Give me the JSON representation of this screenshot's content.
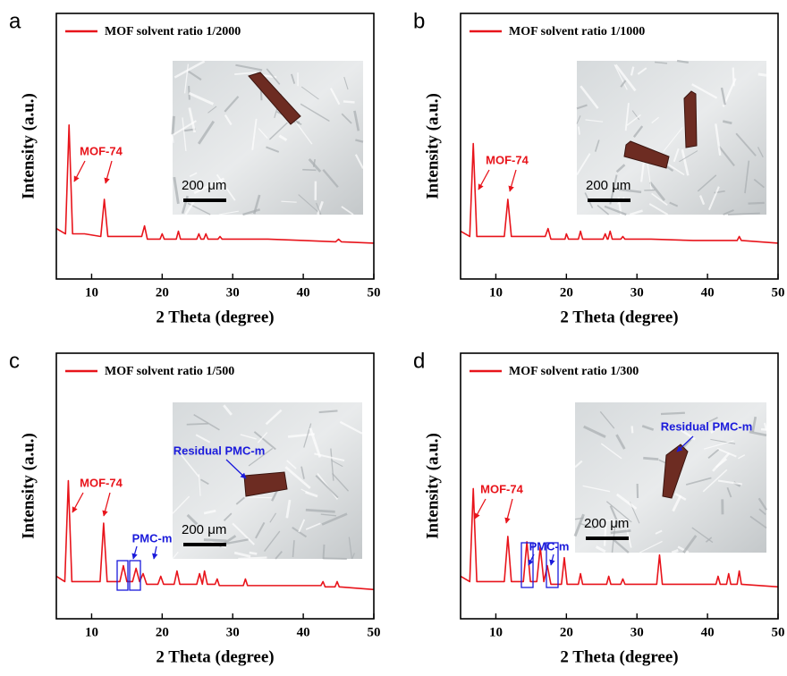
{
  "chart_data": [
    {
      "type": "line",
      "label": "a",
      "xlabel": "2 Theta (degree)",
      "ylabel": "Intensity (a.u.)",
      "xlim": [
        5,
        50
      ],
      "ylim": [
        0,
        100
      ],
      "xticks": [
        10,
        20,
        30,
        40,
        50
      ],
      "series": [
        {
          "name": "MOF solvent ratio 1/2000",
          "color": "#e8141b",
          "x": [
            5,
            6.3,
            6.8,
            7.3,
            9,
            11.3,
            11.8,
            12.3,
            17.1,
            17.5,
            17.9,
            19.7,
            20,
            20.3,
            22,
            22.3,
            22.6,
            24.9,
            25.2,
            25.5,
            25.9,
            26.2,
            26.5,
            27.9,
            28.2,
            28.5,
            31,
            35,
            40,
            44.6,
            45,
            45.4,
            50
          ],
          "values": [
            19,
            17,
            58,
            17,
            17,
            16,
            30,
            16,
            16,
            20,
            15,
            15,
            17,
            15,
            15,
            18,
            15,
            15,
            17,
            15,
            15,
            17,
            15,
            15,
            16,
            15,
            15,
            15,
            14.5,
            14,
            15,
            14,
            13.5
          ]
        }
      ],
      "annotations": [
        {
          "text": "MOF-74",
          "color": "#e8141b"
        }
      ],
      "scale_bar": "200 μm"
    },
    {
      "type": "line",
      "label": "b",
      "xlabel": "2 Theta (degree)",
      "ylabel": "Intensity (a.u.)",
      "xlim": [
        5,
        50
      ],
      "ylim": [
        0,
        100
      ],
      "xticks": [
        10,
        20,
        30,
        40,
        50
      ],
      "series": [
        {
          "name": "MOF solvent ratio 1/1000",
          "color": "#e8141b",
          "x": [
            5,
            6.3,
            6.8,
            7.3,
            9,
            11.2,
            11.7,
            12.2,
            17,
            17.4,
            17.8,
            19.8,
            20,
            20.3,
            21.7,
            22,
            22.3,
            25.2,
            25.5,
            25.8,
            25.9,
            26.2,
            26.5,
            27.7,
            28,
            28.3,
            32,
            38,
            44.2,
            44.5,
            44.8,
            50
          ],
          "values": [
            18,
            16,
            51,
            16,
            16,
            16,
            30,
            16,
            16,
            19,
            15,
            15,
            17,
            15,
            15,
            18,
            15,
            15,
            17,
            15,
            15,
            18,
            15,
            15,
            16,
            15,
            15,
            14.5,
            14.5,
            16,
            14.5,
            13.5
          ]
        }
      ],
      "annotations": [
        {
          "text": "MOF-74",
          "color": "#e8141b"
        }
      ],
      "scale_bar": "200 μm"
    },
    {
      "type": "line",
      "label": "c",
      "xlabel": "2 Theta (degree)",
      "ylabel": "Intensity (a.u.)",
      "xlim": [
        5,
        50
      ],
      "ylim": [
        0,
        100
      ],
      "xticks": [
        10,
        20,
        30,
        40,
        50
      ],
      "series": [
        {
          "name": "MOF solvent ratio 1/500",
          "color": "#e8141b",
          "x": [
            5,
            6.2,
            6.7,
            7.2,
            9,
            11.2,
            11.7,
            12.2,
            14,
            14.5,
            15,
            15.8,
            16.3,
            16.8,
            17.3,
            17.8,
            19.4,
            19.8,
            20.2,
            21.7,
            22.1,
            22.5,
            24.9,
            25.3,
            25.7,
            26,
            26.4,
            27.5,
            27.8,
            28.1,
            31.5,
            31.8,
            32.1,
            36,
            42.5,
            42.8,
            43.1,
            44.5,
            44.8,
            45.1,
            50
          ],
          "values": [
            16,
            14,
            52,
            14,
            14,
            14,
            36,
            14,
            14,
            20,
            14,
            14,
            19,
            14,
            17,
            13,
            13,
            16,
            13,
            13,
            18,
            13,
            13,
            17,
            13,
            18,
            13,
            13,
            15,
            12.5,
            12.5,
            15,
            12.5,
            12.5,
            12.5,
            14,
            12,
            12,
            14,
            12,
            11
          ]
        }
      ],
      "annotations": [
        {
          "text": "MOF-74",
          "color": "#e8141b"
        },
        {
          "text": "PMC-m",
          "color": "#1a1adb"
        },
        {
          "text": "Residual PMC-m",
          "color": "#1a1adb"
        }
      ],
      "scale_bar": "200 μm"
    },
    {
      "type": "line",
      "label": "d",
      "xlabel": "2 Theta (degree)",
      "ylabel": "Intensity (a.u.)",
      "xlim": [
        5,
        50
      ],
      "ylim": [
        0,
        100
      ],
      "xticks": [
        10,
        20,
        30,
        40,
        50
      ],
      "series": [
        {
          "name": "MOF solvent ratio 1/300",
          "color": "#e8141b",
          "x": [
            5,
            6.3,
            6.8,
            7.3,
            9,
            11.2,
            11.7,
            12.2,
            13.9,
            14.4,
            14.9,
            15.8,
            16.3,
            16.8,
            17.3,
            17.8,
            19.3,
            19.7,
            20.1,
            21.7,
            22,
            22.3,
            25.7,
            26,
            26.3,
            27.7,
            28,
            28.3,
            32.8,
            33.2,
            33.6,
            41.2,
            41.5,
            41.8,
            42.7,
            43,
            43.3,
            44.2,
            44.5,
            44.8,
            50
          ],
          "values": [
            16,
            14,
            49,
            14,
            14,
            14,
            31,
            14,
            14,
            29,
            14,
            14,
            27,
            14,
            20,
            13,
            13,
            23,
            13,
            13,
            17,
            13,
            13,
            16,
            13,
            13,
            15,
            13,
            13,
            24,
            13,
            13,
            16,
            13,
            13,
            17,
            13,
            13,
            18,
            13,
            12
          ]
        }
      ],
      "annotations": [
        {
          "text": "MOF-74",
          "color": "#e8141b"
        },
        {
          "text": "PMC-m",
          "color": "#1a1adb"
        },
        {
          "text": "Residual PMC-m",
          "color": "#1a1adb"
        }
      ],
      "scale_bar": "200 μm"
    }
  ]
}
